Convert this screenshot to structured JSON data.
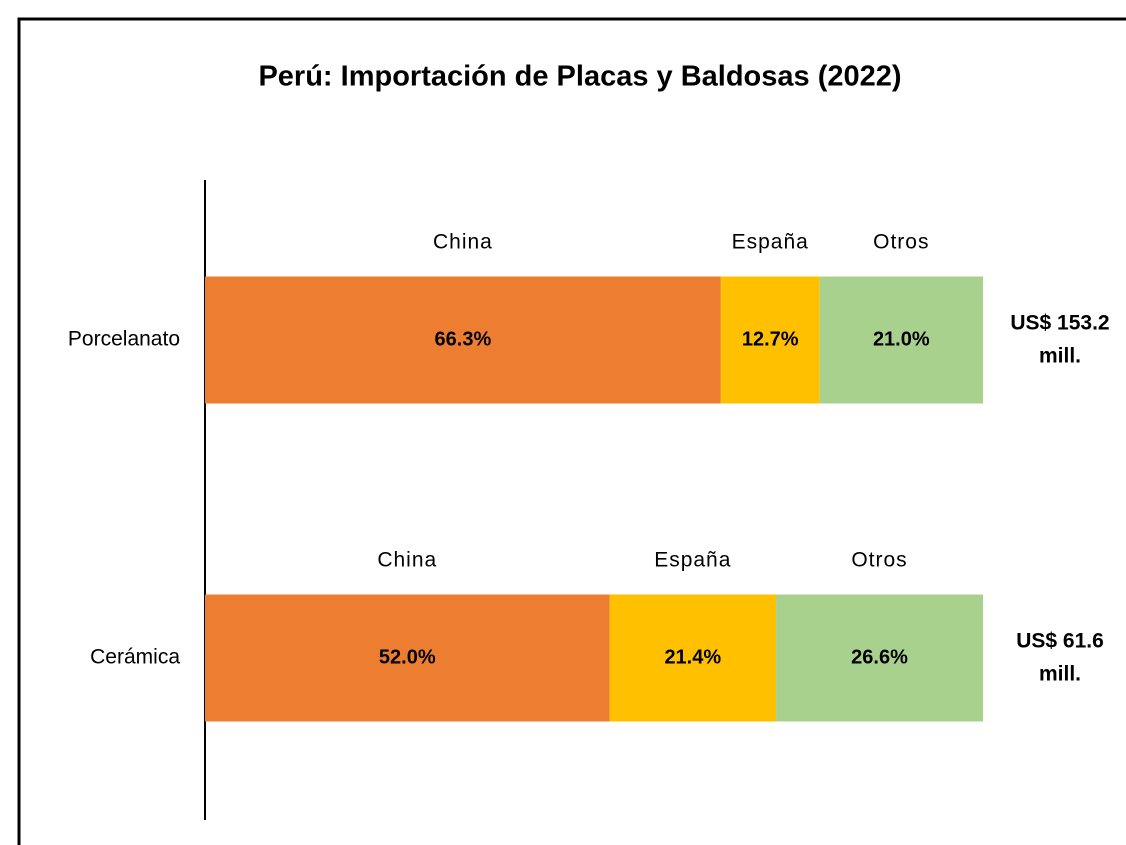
{
  "chart_data": {
    "type": "stacked_bar_horizontal",
    "title": "Perú: Importación de Placas y Baldosas (2022)",
    "categories": [
      "Porcelanato",
      "Cerámica"
    ],
    "series": [
      {
        "name": "China",
        "color": "#ED7D31",
        "values": [
          66.3,
          52.0
        ],
        "value_labels": [
          "66.3%",
          "52.0%"
        ]
      },
      {
        "name": "España",
        "color": "#FFC000",
        "values": [
          12.7,
          21.4
        ],
        "value_labels": [
          "12.7%",
          "21.4%"
        ]
      },
      {
        "name": "Otros",
        "color": "#A9D18E",
        "values": [
          21.0,
          26.6
        ],
        "value_labels": [
          "21.0%",
          "26.6%"
        ]
      }
    ],
    "total_labels": [
      [
        "US$ 153.2",
        "mill."
      ],
      [
        "US$ 61.6",
        "mill."
      ]
    ]
  }
}
